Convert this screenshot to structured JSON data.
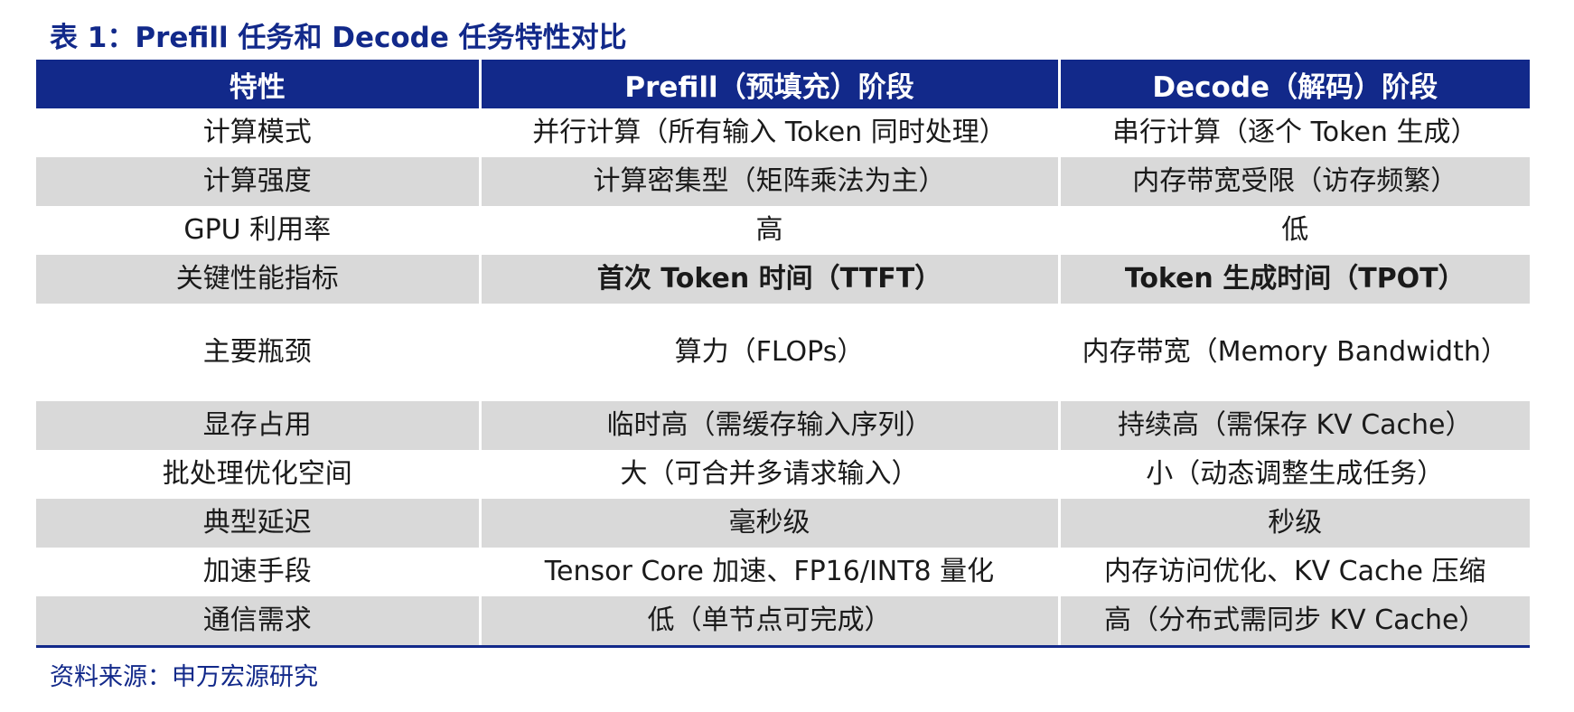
{
  "title": "表 1：Prefill 任务和 Decode 任务特性对比",
  "table": {
    "headers": [
      "特性",
      "Prefill（预填充）阶段",
      "Decode（解码）阶段"
    ],
    "rows": [
      [
        "计算模式",
        "并行计算（所有输入 Token 同时处理）",
        "串行计算（逐个 Token 生成）"
      ],
      [
        "计算强度",
        "计算密集型（矩阵乘法为主）",
        "内存带宽受限（访存频繁）"
      ],
      [
        "GPU 利用率",
        "高",
        "低"
      ],
      [
        "关键性能指标",
        "首次 Token 时间（TTFT）",
        "Token 生成时间（TPOT）"
      ],
      [
        "主要瓶颈",
        "算力（FLOPs）",
        "内存带宽（Memory Bandwidth）"
      ],
      [
        "显存占用",
        "临时高（需缓存输入序列）",
        "持续高（需保存 KV Cache）"
      ],
      [
        "批处理优化空间",
        "大（可合并多请求输入）",
        "小（动态调整生成任务）"
      ],
      [
        "典型延迟",
        "毫秒级",
        "秒级"
      ],
      [
        "加速手段",
        "Tensor Core 加速、FP16/INT8 量化",
        "内存访问优化、KV Cache 压缩"
      ],
      [
        "通信需求",
        "低（单节点可完成）",
        "高（分布式需同步 KV Cache）"
      ]
    ]
  },
  "source": "资料来源：申万宏源研究",
  "colors": {
    "header_bg": "#12298a",
    "stripe_bg": "#d9d9d9",
    "title_color": "#12298a"
  }
}
